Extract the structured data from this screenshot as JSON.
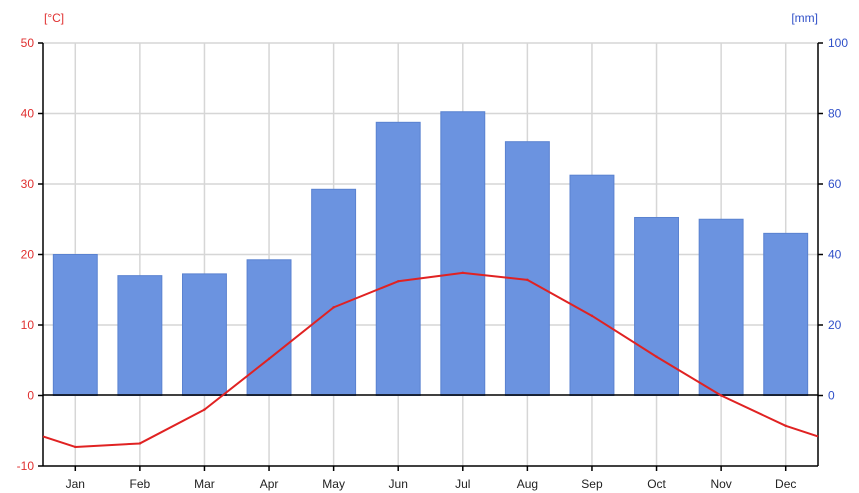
{
  "chart_data": {
    "type": "bar",
    "categories": [
      "Jan",
      "Feb",
      "Mar",
      "Apr",
      "May",
      "Jun",
      "Jul",
      "Aug",
      "Sep",
      "Oct",
      "Nov",
      "Dec"
    ],
    "left_axis": {
      "label": "[°C]",
      "ylim": [
        -10,
        50
      ],
      "ticks": [
        50,
        40,
        30,
        20,
        10,
        0,
        -10
      ]
    },
    "right_axis": {
      "label": "[mm]",
      "ylim": [
        -20,
        100
      ],
      "ticks": [
        100,
        80,
        60,
        40,
        20,
        0
      ]
    },
    "series": [
      {
        "type": "bar",
        "axis": "right",
        "values": [
          40,
          34,
          34.5,
          38.5,
          58.5,
          77.5,
          80.5,
          72,
          62.5,
          50.5,
          50,
          46
        ]
      },
      {
        "type": "line",
        "axis": "left",
        "values": [
          -7.3,
          -6.8,
          -2,
          5.2,
          12.5,
          16.2,
          17.4,
          16.4,
          11.3,
          5.5,
          0,
          -4.3
        ],
        "edge_values": [
          -5.8,
          -5.8
        ]
      }
    ],
    "grid": true,
    "colors": {
      "bar": "#6b93e0",
      "bar_edge": "#5a82d0",
      "line": "#e02222",
      "left_axis": "#e03030",
      "right_axis": "#3050c8",
      "grid": "#d6d6d6",
      "zero_line": "#000000"
    }
  }
}
